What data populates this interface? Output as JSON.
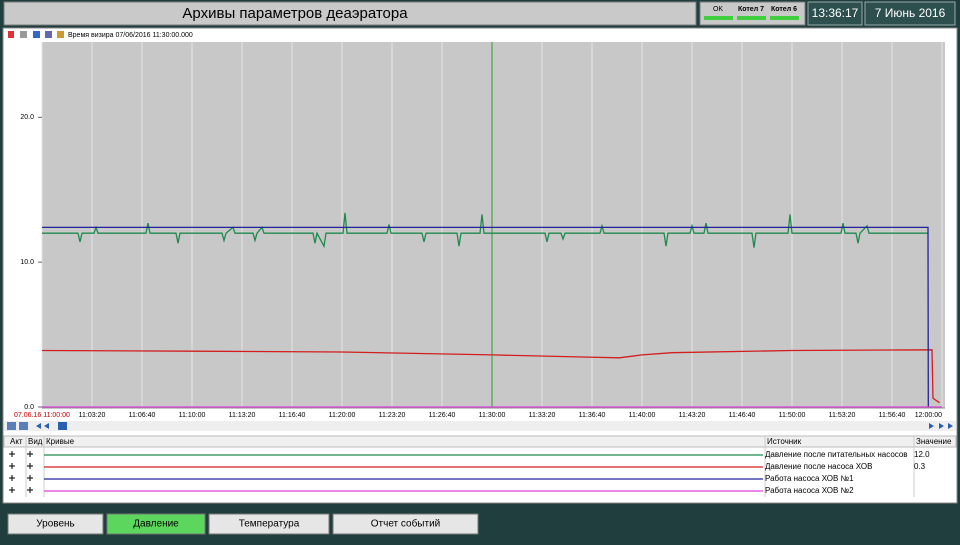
{
  "header": {
    "title": "Архивы параметров деаэратора",
    "status": [
      "OK",
      "Котел 7",
      "Котел 6"
    ],
    "time": "13:36:17",
    "date": "7 Июнь 2016"
  },
  "toolbar": {
    "cursor_text": "Время визира 07/06/2016 11:30:00.000"
  },
  "chart_data": {
    "type": "line",
    "xlim": [
      "11:00:00",
      "12:00:00"
    ],
    "xticks": [
      {
        "value": "11:00:00",
        "label": "07.06.16 11:00:00"
      },
      "11:03:20",
      "11:06:40",
      "11:10:00",
      "11:13:20",
      "11:16:40",
      "11:20:00",
      "11:23:20",
      "11:26:40",
      "11:30:00",
      "11:33:20",
      "11:36:40",
      "11:40:00",
      "11:43:20",
      "11:46:40",
      "11:50:00",
      "11:53:20",
      "11:56:40",
      "12:00:00"
    ],
    "ylim": [
      0,
      25.2
    ],
    "yticks": [
      {
        "value": 0,
        "label": "0.0"
      },
      {
        "value": 10,
        "label": "10.0"
      },
      {
        "value": 20,
        "label": "20.0"
      }
    ],
    "cursor_x": "11:30:00",
    "cursor_color": "#2e9e2e",
    "grid": true,
    "series": [
      {
        "name": "Давление после питательных насосов",
        "color": "#1e8a4e",
        "x": [
          "11:00:00",
          "11:02:24",
          "11:02:32",
          "11:02:40",
          "11:03:28",
          "11:03:36",
          "11:03:44",
          "11:06:56",
          "11:07:04",
          "11:07:12",
          "11:08:56",
          "11:09:04",
          "11:09:12",
          "11:12:00",
          "11:12:08",
          "11:12:16",
          "11:12:44",
          "11:12:52",
          "11:14:04",
          "11:14:12",
          "11:14:20",
          "11:14:40",
          "11:14:48",
          "11:18:04",
          "11:18:12",
          "11:18:20",
          "11:18:48",
          "11:18:56",
          "11:20:04",
          "11:20:12",
          "11:20:20",
          "11:23:00",
          "11:23:08",
          "11:23:16",
          "11:25:20",
          "11:25:28",
          "11:25:36",
          "11:27:40",
          "11:27:48",
          "11:27:56",
          "11:29:12",
          "11:29:20",
          "11:29:28",
          "11:33:32",
          "11:33:40",
          "11:33:48",
          "11:34:36",
          "11:34:44",
          "11:34:52",
          "11:37:12",
          "11:37:20",
          "11:37:28",
          "11:41:28",
          "11:41:36",
          "11:41:44",
          "11:43:12",
          "11:43:20",
          "11:43:28",
          "11:44:08",
          "11:44:16",
          "11:44:24",
          "11:47:20",
          "11:47:28",
          "11:47:36",
          "11:49:44",
          "11:49:52",
          "11:50:00",
          "11:53:16",
          "11:53:24",
          "11:53:32",
          "11:54:16",
          "11:54:24",
          "11:54:32",
          "11:55:00",
          "11:55:08",
          "11:59:04"
        ],
        "values": [
          12.0,
          12.0,
          11.4,
          12.0,
          12.0,
          12.4,
          12.0,
          12.0,
          12.7,
          12.0,
          12.0,
          11.3,
          12.0,
          12.0,
          11.5,
          12.0,
          12.4,
          12.0,
          12.0,
          11.5,
          12.0,
          12.4,
          12.0,
          12.0,
          11.3,
          12.0,
          11.1,
          12.0,
          12.0,
          13.4,
          12.0,
          12.0,
          12.6,
          12.0,
          12.0,
          11.4,
          12.0,
          12.0,
          11.1,
          12.0,
          12.0,
          13.3,
          12.0,
          12.0,
          11.4,
          12.0,
          12.0,
          11.6,
          12.0,
          12.0,
          12.5,
          12.0,
          12.0,
          11.1,
          12.0,
          12.0,
          12.5,
          12.0,
          12.0,
          12.7,
          12.0,
          12.0,
          11.0,
          12.0,
          12.0,
          13.3,
          12.0,
          12.0,
          12.7,
          12.0,
          12.0,
          11.3,
          12.0,
          12.5,
          12.0,
          12.0
        ]
      },
      {
        "name": "Давление после насоса ХОВ",
        "color": "#d21e1e",
        "x": [
          "11:00:00",
          "11:10:00",
          "11:20:00",
          "11:30:00",
          "11:36:00",
          "11:38:30",
          "11:40:00",
          "11:42:00",
          "11:50:00",
          "11:59:20",
          "11:59:24",
          "11:59:50"
        ],
        "values": [
          3.9,
          3.85,
          3.8,
          3.6,
          3.45,
          3.4,
          3.6,
          3.75,
          3.9,
          3.95,
          0.6,
          0.3
        ]
      },
      {
        "name": "Работа насоса ХОВ №1",
        "color": "#23239a",
        "x": [
          "11:00:00",
          "11:59:04",
          "11:59:05"
        ],
        "values": [
          12.4,
          12.4,
          0
        ]
      },
      {
        "name": "Работа насоса ХОВ №2",
        "color": "#e040e0",
        "x": [
          "11:00:00",
          "12:00:00"
        ],
        "values": [
          0,
          0
        ]
      }
    ]
  },
  "legend_table": {
    "headers": [
      "Акт",
      "Вид",
      "Кривые",
      "Источник",
      "Значение"
    ],
    "values": [
      "12.0",
      "0.3"
    ]
  },
  "buttons": [
    "Уровень",
    "Давление",
    "Температура",
    "Отчет событий"
  ]
}
